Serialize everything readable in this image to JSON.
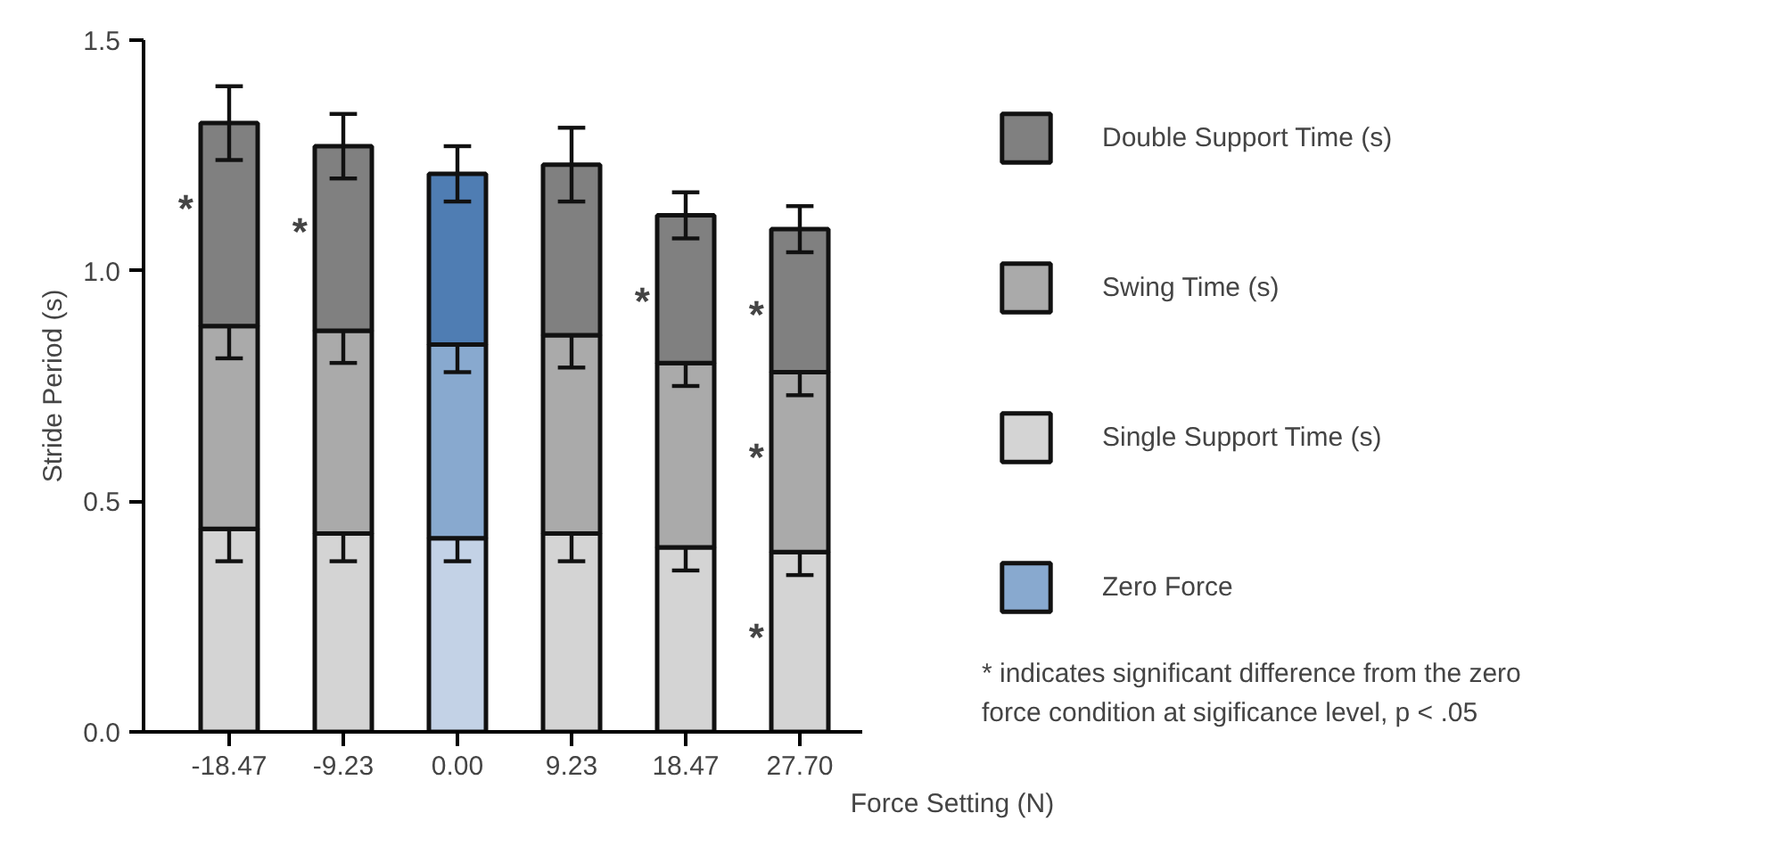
{
  "chart_data": {
    "type": "bar",
    "stacked": true,
    "xlabel": "Force Setting (N)",
    "ylabel": "Stride Period (s)",
    "categories": [
      "-18.47",
      "-9.23",
      "0.00",
      "9.23",
      "18.47",
      "27.70"
    ],
    "series": [
      {
        "name": "Single Support Time (s)",
        "color": "#d4d4d4",
        "colors": [
          "#d4d4d4",
          "#d4d4d4",
          "#c3d2e6",
          "#d4d4d4",
          "#d4d4d4",
          "#d4d4d4"
        ],
        "values": [
          0.44,
          0.43,
          0.42,
          0.43,
          0.4,
          0.39
        ],
        "errors": [
          0.07,
          0.06,
          0.05,
          0.06,
          0.05,
          0.05
        ]
      },
      {
        "name": "Swing Time (s)",
        "color": "#aaaaaa",
        "colors": [
          "#aaaaaa",
          "#aaaaaa",
          "#88a9cf",
          "#aaaaaa",
          "#aaaaaa",
          "#aaaaaa"
        ],
        "values": [
          0.44,
          0.44,
          0.42,
          0.43,
          0.4,
          0.39
        ],
        "errors": [
          0.07,
          0.07,
          0.06,
          0.07,
          0.05,
          0.05
        ]
      },
      {
        "name": "Double Support Time (s)",
        "color": "#808080",
        "colors": [
          "#808080",
          "#808080",
          "#4f7db3",
          "#808080",
          "#808080",
          "#808080"
        ],
        "values": [
          0.44,
          0.4,
          0.37,
          0.37,
          0.32,
          0.31
        ],
        "errors": [
          0.08,
          0.07,
          0.06,
          0.08,
          0.05,
          0.05
        ]
      },
      {
        "name": "Zero Force",
        "color": "#88a9cf",
        "values": [
          null,
          null,
          null,
          null,
          null,
          null
        ]
      }
    ],
    "ylim": [
      0,
      1.5
    ],
    "yticks": [
      {
        "value": 0,
        "label": "0.0"
      },
      0.5,
      {
        "value": 1,
        "label": "1.0"
      },
      1.5
    ],
    "grid": false,
    "legend": "right",
    "annotations": [
      {
        "text": "*",
        "x": "-18.47",
        "y": 1.32
      },
      {
        "text": "*",
        "x": "-9.23",
        "y": 1.27
      },
      {
        "text": "*",
        "x": "18.47",
        "y": 1.12
      },
      {
        "text": "*",
        "x": "27.70",
        "y": 1.09
      },
      {
        "text": "*",
        "x": "27.70",
        "y": 0.78
      },
      {
        "text": "*",
        "x": "27.70",
        "y": 0.39
      },
      "* indicates significant difference from the zero force condition at sigificance level, p < .05"
    ]
  }
}
